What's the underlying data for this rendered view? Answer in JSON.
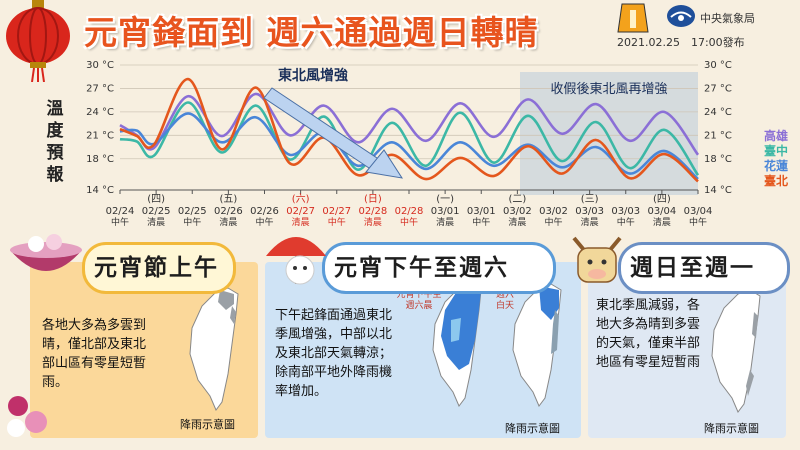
{
  "header": {
    "title": "元宵鋒面到 週六通過週日轉晴",
    "agency": "中央氣象局",
    "issued": "2021.02.25　17:00發布"
  },
  "colors": {
    "kaohsiung": "#8b6fd6",
    "taichung": "#3cb8a6",
    "hualien": "#4a86d8",
    "taipei": "#e4571d"
  },
  "chart_data": {
    "type": "line",
    "ylabel": "溫度預報",
    "ylim": [
      14,
      30
    ],
    "y_ticks": [
      "30 °C",
      "27 °C",
      "24 °C",
      "21 °C",
      "18 °C",
      "14 °C"
    ],
    "x_labels": [
      {
        "top": "",
        "date": "02/24",
        "part": "中午",
        "hl": false
      },
      {
        "top": "(四)",
        "date": "02/25",
        "part": "清晨",
        "hl": false
      },
      {
        "top": "",
        "date": "02/25",
        "part": "中午",
        "hl": false
      },
      {
        "top": "(五)",
        "date": "02/26",
        "part": "清晨",
        "hl": false
      },
      {
        "top": "",
        "date": "02/26",
        "part": "中午",
        "hl": false
      },
      {
        "top": "(六)",
        "date": "02/27",
        "part": "清晨",
        "hl": true
      },
      {
        "top": "",
        "date": "02/27",
        "part": "中午",
        "hl": true
      },
      {
        "top": "(日)",
        "date": "02/28",
        "part": "清晨",
        "hl": true
      },
      {
        "top": "",
        "date": "02/28",
        "part": "中午",
        "hl": true
      },
      {
        "top": "(一)",
        "date": "03/01",
        "part": "清晨",
        "hl": false
      },
      {
        "top": "",
        "date": "03/01",
        "part": "中午",
        "hl": false
      },
      {
        "top": "(二)",
        "date": "03/02",
        "part": "清晨",
        "hl": false
      },
      {
        "top": "",
        "date": "03/02",
        "part": "中午",
        "hl": false
      },
      {
        "top": "(三)",
        "date": "03/03",
        "part": "清晨",
        "hl": false
      },
      {
        "top": "",
        "date": "03/03",
        "part": "中午",
        "hl": false
      },
      {
        "top": "(四)",
        "date": "03/04",
        "part": "清晨",
        "hl": false
      },
      {
        "top": "",
        "date": "03/04",
        "part": "中午",
        "hl": false
      }
    ],
    "series": [
      {
        "name": "高雄",
        "color": "#8b6fd6",
        "values": [
          [
            0,
            22.3
          ],
          [
            0.5,
            21.0
          ],
          [
            1,
            19.4
          ],
          [
            2,
            26.0
          ],
          [
            3,
            20.9
          ],
          [
            4,
            26.3
          ],
          [
            5,
            21.0
          ],
          [
            6,
            24.8
          ],
          [
            7,
            20.1
          ],
          [
            8,
            24.4
          ],
          [
            9,
            20.3
          ],
          [
            10,
            25.1
          ],
          [
            11,
            20.8
          ],
          [
            12,
            25.6
          ],
          [
            13,
            21.2
          ],
          [
            14,
            25.0
          ],
          [
            15,
            20.3
          ],
          [
            16,
            24.0
          ],
          [
            17,
            18.5
          ]
        ]
      },
      {
        "name": "臺中",
        "color": "#3cb8a6",
        "values": [
          [
            0,
            20.5
          ],
          [
            0.5,
            20.2
          ],
          [
            1,
            18.4
          ],
          [
            2,
            25.2
          ],
          [
            3,
            18.8
          ],
          [
            4,
            24.8
          ],
          [
            5,
            17.9
          ],
          [
            6,
            23.4
          ],
          [
            7,
            16.6
          ],
          [
            8,
            22.6
          ],
          [
            9,
            17.1
          ],
          [
            10,
            23.9
          ],
          [
            11,
            17.5
          ],
          [
            12,
            23.5
          ],
          [
            13,
            17.7
          ],
          [
            14,
            22.7
          ],
          [
            15,
            16.8
          ],
          [
            16,
            21.7
          ],
          [
            17,
            15.9
          ]
        ]
      },
      {
        "name": "花蓮",
        "color": "#4a86d8",
        "values": [
          [
            0,
            21.5
          ],
          [
            0.5,
            21.6
          ],
          [
            1,
            19.9
          ],
          [
            2,
            23.8
          ],
          [
            3,
            20.1
          ],
          [
            4,
            23.3
          ],
          [
            5,
            18.5
          ],
          [
            6,
            21.4
          ],
          [
            7,
            17.1
          ],
          [
            8,
            20.1
          ],
          [
            9,
            16.7
          ],
          [
            10,
            20.1
          ],
          [
            11,
            17.1
          ],
          [
            12,
            19.8
          ],
          [
            13,
            16.9
          ],
          [
            14,
            19.5
          ],
          [
            15,
            16.1
          ],
          [
            16,
            19.0
          ],
          [
            17,
            15.4
          ]
        ]
      },
      {
        "name": "臺北",
        "color": "#e4571d",
        "values": [
          [
            0,
            21.8
          ],
          [
            0.5,
            20.9
          ],
          [
            1,
            19.8
          ],
          [
            2,
            28.2
          ],
          [
            3,
            19.2
          ],
          [
            4,
            27.1
          ],
          [
            5,
            17.4
          ],
          [
            6,
            20.7
          ],
          [
            7,
            15.9
          ],
          [
            8,
            18.5
          ],
          [
            9,
            15.4
          ],
          [
            10,
            18.1
          ],
          [
            11,
            15.8
          ],
          [
            12,
            19.6
          ],
          [
            13,
            16.1
          ],
          [
            14,
            20.4
          ],
          [
            15,
            15.5
          ],
          [
            16,
            18.6
          ],
          [
            17,
            15.1
          ]
        ]
      }
    ],
    "annotations": {
      "arrow_label": "東北風增強",
      "box_label": "收假後東北風再增強"
    },
    "legend_position": "right"
  },
  "panels": {
    "left": {
      "title": "元宵節上午",
      "text": "各地大多為多雲到晴，僅北部及東北部山區有零星短暫雨。",
      "caption": "降雨示意圖"
    },
    "middle": {
      "title": "元宵下午至週六",
      "text": "下午起鋒面通過東北季風增強，中部以北及東北部天氣轉涼；除南部平地外降雨機率增加。",
      "map1_label": "元宵下午至週六晨",
      "map2_label": "週六白天",
      "caption": "降雨示意圖"
    },
    "right": {
      "title": "週日至週一",
      "text": "東北季風減弱，各地大多為晴到多雲的天氣，僅東半部地區有零星短暫雨",
      "caption": "降雨示意圖"
    }
  }
}
